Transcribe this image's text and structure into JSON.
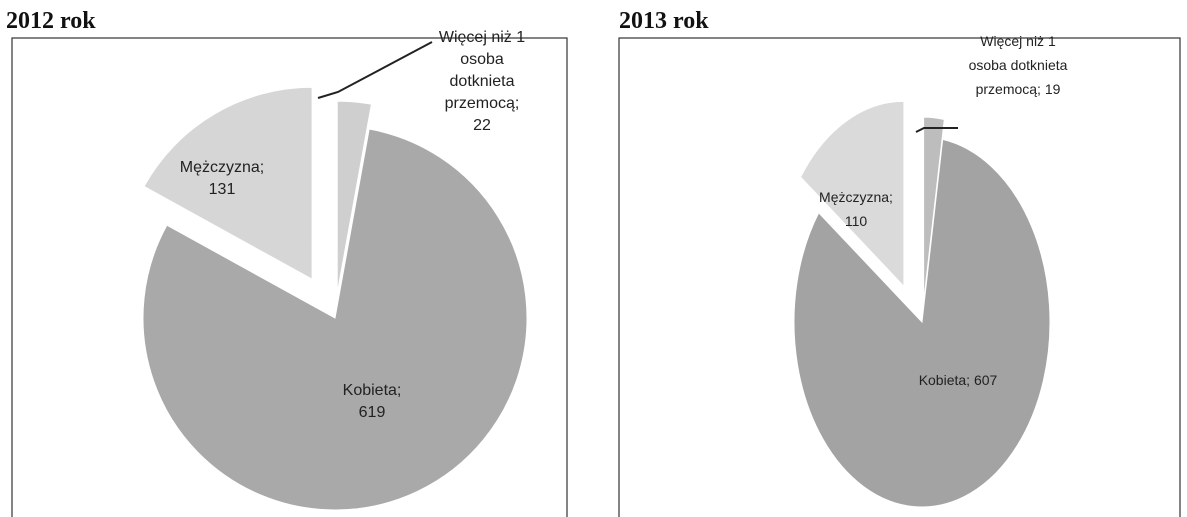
{
  "chart_data": [
    {
      "type": "pie",
      "title": "2012 rok",
      "categories": [
        "Więcej niż 1 osoba dotknieta przemocą;",
        "Kobieta;",
        "Mężczyzna;"
      ],
      "values": [
        22,
        619,
        131
      ],
      "colors": [
        "#cfcfcf",
        "#a9a9a9",
        "#d6d6d6"
      ]
    },
    {
      "type": "pie",
      "title": "2013 rok",
      "categories": [
        "Więcej niż 1 osoba dotknieta przemocą;",
        "Kobieta;",
        "Mężczyzna;"
      ],
      "values": [
        19,
        607,
        110
      ],
      "colors": [
        "#bdbdbd",
        "#a3a3a3",
        "#dadada"
      ]
    }
  ]
}
